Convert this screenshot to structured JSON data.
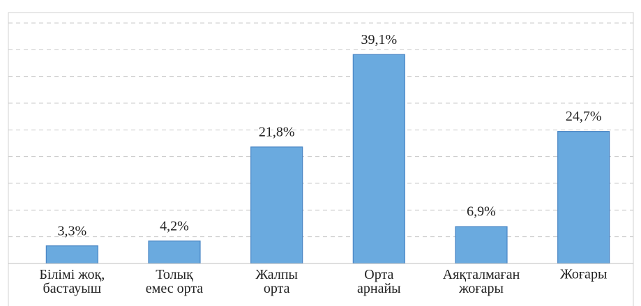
{
  "chart_data": {
    "type": "bar",
    "categories": [
      "Білімі жоқ,\nбастауыш",
      "Толық\nемес орта",
      "Жалпы\nорта",
      "Орта\nарнайы",
      "Аяқталмаған\nжоғары",
      "Жоғары"
    ],
    "values": [
      3.3,
      4.2,
      21.8,
      39.1,
      6.9,
      24.7
    ],
    "value_labels": [
      "3,3%",
      "4,2%",
      "21,8%",
      "39,1%",
      "6,9%",
      "24,7%"
    ],
    "color": "#6aaadf",
    "ylim": [
      0,
      45
    ],
    "yticks": [
      0,
      5,
      10,
      15,
      20,
      25,
      30,
      35,
      40,
      45
    ],
    "grid": true
  }
}
